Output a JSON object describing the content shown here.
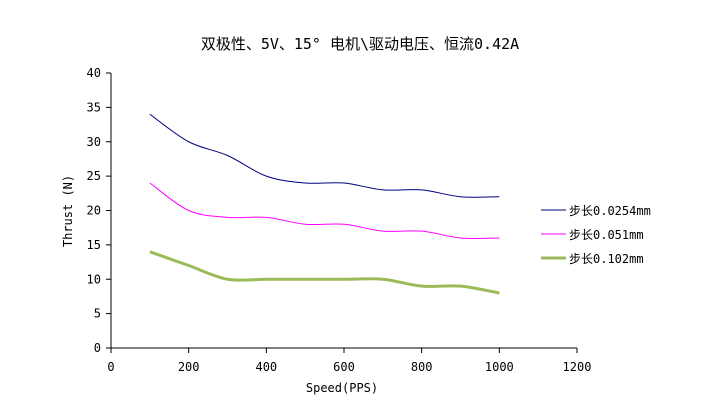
{
  "chart_data": {
    "type": "line",
    "title": "双极性、5V、15° 电机\\驱动电压、恒流0.42A",
    "xlabel": "Speed(PPS)",
    "ylabel": "Thrust (N)",
    "xlim": [
      0,
      1200
    ],
    "ylim": [
      0,
      40
    ],
    "xticks": [
      0,
      200,
      400,
      600,
      800,
      1000,
      1200
    ],
    "yticks": [
      0,
      5,
      10,
      15,
      20,
      25,
      30,
      35,
      40
    ],
    "grid": false,
    "legend_position": "right",
    "smooth": true,
    "x": [
      100,
      200,
      300,
      400,
      500,
      600,
      700,
      800,
      900,
      1000
    ],
    "series": [
      {
        "name": "步长0.0254mm",
        "color": "#000080",
        "values": [
          34,
          30,
          28,
          25,
          24,
          24,
          23,
          23,
          22,
          22
        ]
      },
      {
        "name": "步长0.051mm",
        "color": "#ff00ff",
        "values": [
          24,
          20,
          19,
          19,
          18,
          18,
          17,
          17,
          16,
          16
        ]
      },
      {
        "name": "步长0.102mm",
        "color": "#9bbb59",
        "values": [
          14,
          12,
          10,
          10,
          10,
          10,
          10,
          9,
          9,
          8
        ]
      }
    ]
  }
}
